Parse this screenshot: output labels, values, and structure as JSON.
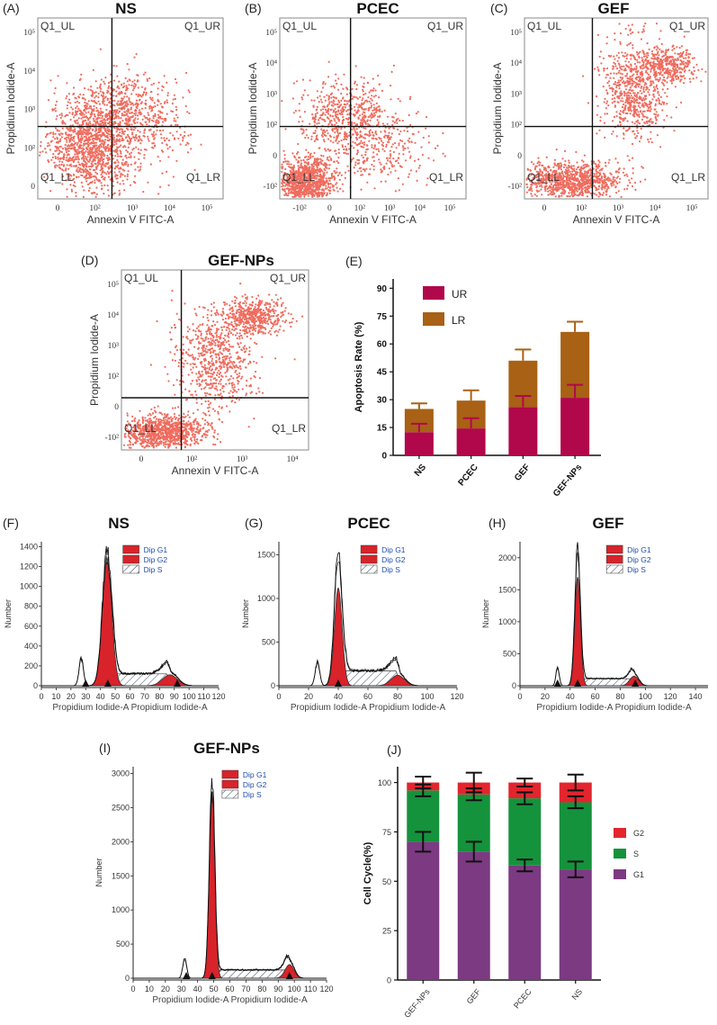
{
  "chart_data": [
    {
      "panel": "(A)",
      "type": "scatter",
      "title": "NS",
      "xlabel": "Annexin V FITC-A",
      "ylabel": "Propidium Iodide-A",
      "x_ticks": [
        "0",
        "10²",
        "10³",
        "10⁴",
        "10⁵"
      ],
      "y_ticks": [
        "0",
        "10²",
        "10³",
        "10⁴",
        "10⁵"
      ],
      "quadrants": [
        "Q1_UL",
        "Q1_UR",
        "Q1_LL",
        "Q1_LR"
      ],
      "gate": {
        "x": 0.4,
        "y": 0.4
      },
      "clusters": [
        {
          "cx": 0.3,
          "cy": 0.3,
          "sx": 0.12,
          "sy": 0.13,
          "n": 1300
        },
        {
          "cx": 0.48,
          "cy": 0.5,
          "sx": 0.13,
          "sy": 0.1,
          "n": 500
        },
        {
          "cx": 0.68,
          "cy": 0.36,
          "sx": 0.1,
          "sy": 0.09,
          "n": 100
        }
      ]
    },
    {
      "panel": "(B)",
      "type": "scatter",
      "title": "PCEC",
      "xlabel": "Annexin V FITC-A",
      "ylabel": "Propidium Iodide-A",
      "x_ticks": [
        "-10²",
        "0",
        "10²",
        "10³",
        "10⁴",
        "10⁵"
      ],
      "y_ticks": [
        "-10²",
        "0",
        "10²",
        "10³",
        "10⁴",
        "10⁵"
      ],
      "quadrants": [
        "Q1_UL",
        "Q1_UR",
        "Q1_LL",
        "Q1_LR"
      ],
      "gate": {
        "x": 0.38,
        "y": 0.4
      },
      "clusters": [
        {
          "cx": 0.14,
          "cy": 0.09,
          "sx": 0.08,
          "sy": 0.07,
          "n": 1100
        },
        {
          "cx": 0.35,
          "cy": 0.45,
          "sx": 0.13,
          "sy": 0.11,
          "n": 600
        },
        {
          "cx": 0.55,
          "cy": 0.28,
          "sx": 0.12,
          "sy": 0.12,
          "n": 250
        }
      ]
    },
    {
      "panel": "(C)",
      "type": "scatter",
      "title": "GEF",
      "xlabel": "Annexin V FITC-A",
      "ylabel": "Propidium Iodide-A",
      "x_ticks": [
        "0",
        "10²",
        "10³",
        "10⁴",
        "10⁵"
      ],
      "y_ticks": [
        "-10²",
        "0",
        "10²",
        "10³",
        "10⁴",
        "10⁵"
      ],
      "quadrants": [
        "Q1_UL",
        "Q1_UR",
        "Q1_LL",
        "Q1_LR"
      ],
      "gate": {
        "x": 0.37,
        "y": 0.4
      },
      "clusters": [
        {
          "cx": 0.25,
          "cy": 0.1,
          "sx": 0.14,
          "sy": 0.05,
          "n": 1000
        },
        {
          "cx": 0.6,
          "cy": 0.6,
          "sx": 0.09,
          "sy": 0.15,
          "n": 700
        },
        {
          "cx": 0.78,
          "cy": 0.74,
          "sx": 0.07,
          "sy": 0.05,
          "n": 350
        }
      ]
    },
    {
      "panel": "(D)",
      "type": "scatter",
      "title": "GEF-NPs",
      "xlabel": "Annexin V FITC-A",
      "ylabel": "Propidium Iodide-A",
      "x_ticks": [
        "0",
        "10²",
        "10³",
        "10⁴"
      ],
      "y_ticks": [
        "-10²",
        "0",
        "10²",
        "10³",
        "10⁴",
        "10⁵"
      ],
      "quadrants": [
        "Q1_UL",
        "Q1_UR",
        "Q1_LL",
        "Q1_LR"
      ],
      "gate": {
        "x": 0.32,
        "y": 0.29
      },
      "clusters": [
        {
          "cx": 0.22,
          "cy": 0.1,
          "sx": 0.12,
          "sy": 0.05,
          "n": 1000
        },
        {
          "cx": 0.5,
          "cy": 0.5,
          "sx": 0.11,
          "sy": 0.15,
          "n": 700
        },
        {
          "cx": 0.72,
          "cy": 0.74,
          "sx": 0.08,
          "sy": 0.05,
          "n": 500
        }
      ]
    },
    {
      "panel": "(E)",
      "type": "bar",
      "stacked": true,
      "ylabel": "Apoptosis Rate (%)",
      "categories": [
        "NS",
        "PCEC",
        "GEF",
        "GEF-NPs"
      ],
      "y_ticks": [
        0,
        15,
        30,
        45,
        60,
        75,
        90
      ],
      "ylim": [
        0,
        95
      ],
      "series": [
        {
          "name": "UR",
          "color": "#b0084a",
          "values": [
            12.5,
            14.5,
            26,
            31
          ],
          "errors": [
            4.5,
            5.5,
            6,
            7
          ]
        },
        {
          "name": "LR",
          "color": "#a86115",
          "values": [
            12.5,
            15,
            25,
            35.5
          ],
          "errors": [
            3,
            5.5,
            6,
            5.5
          ]
        }
      ]
    },
    {
      "panel": "(F)",
      "type": "area",
      "title": "NS",
      "xlabel": "Propidium Iodide-A Propidium Iodide-A",
      "ylabel": "Number",
      "xlim": [
        0,
        120
      ],
      "x_ticks": [
        0,
        10,
        20,
        30,
        40,
        50,
        60,
        70,
        80,
        90,
        100,
        110,
        120
      ],
      "ylim": [
        0,
        1450
      ],
      "y_ticks": [
        0,
        200,
        400,
        600,
        800,
        1000,
        1200,
        1400
      ],
      "legend": [
        "Dip G1",
        "Dip G2",
        "Dip S"
      ],
      "g1": {
        "mu": 44.5,
        "sd": 3.2,
        "h": 1250
      },
      "g2": {
        "mu": 87,
        "sd": 5,
        "h": 110
      },
      "s": {
        "a": 46,
        "b": 88,
        "h": 120
      },
      "debris": {
        "mu": 27,
        "sd": 1.5,
        "h": 280
      },
      "total_peak": 1350,
      "markers": [
        30,
        45,
        92
      ]
    },
    {
      "panel": "(G)",
      "type": "area",
      "title": "PCEC",
      "xlabel": "Propidium Iodide-A Propidium Iodide-A",
      "ylabel": "Number",
      "xlim": [
        0,
        120
      ],
      "x_ticks": [
        0,
        20,
        40,
        60,
        80,
        100,
        120
      ],
      "ylim": [
        0,
        1650
      ],
      "y_ticks": [
        0,
        500,
        1000,
        1500
      ],
      "legend": [
        "Dip G1",
        "Dip G2",
        "Dip S"
      ],
      "g1": {
        "mu": 40,
        "sd": 2.6,
        "h": 1120
      },
      "g2": {
        "mu": 80,
        "sd": 4.5,
        "h": 120
      },
      "s": {
        "a": 42,
        "b": 82,
        "h": 170
      },
      "debris": {
        "mu": 26,
        "sd": 1.5,
        "h": 280
      },
      "total_peak": 1540,
      "markers": [
        40
      ]
    },
    {
      "panel": "(H)",
      "type": "area",
      "title": "GEF",
      "xlabel": "Propidium Iodide-A Propidium Iodide-A",
      "ylabel": "Number",
      "xlim": [
        0,
        150
      ],
      "x_ticks": [
        0,
        20,
        40,
        60,
        80,
        100,
        120,
        140
      ],
      "ylim": [
        0,
        2250
      ],
      "y_ticks": [
        0,
        500,
        1000,
        1500,
        2000
      ],
      "legend": [
        "Dip G1",
        "Dip G2",
        "Dip S"
      ],
      "g1": {
        "mu": 46,
        "sd": 2.2,
        "h": 1700
      },
      "g2": {
        "mu": 91,
        "sd": 3.5,
        "h": 150
      },
      "s": {
        "a": 48,
        "b": 92,
        "h": 110
      },
      "debris": {
        "mu": 30,
        "sd": 1.3,
        "h": 300
      },
      "total_peak": 2150,
      "markers": [
        30,
        46,
        92
      ]
    },
    {
      "panel": "(I)",
      "type": "area",
      "title": "GEF-NPs",
      "xlabel": "Propidium Iodide-A Propidium Iodide-A",
      "ylabel": "Number",
      "xlim": [
        0,
        120
      ],
      "x_ticks": [
        0,
        10,
        20,
        30,
        40,
        50,
        60,
        70,
        80,
        90,
        100,
        110,
        120
      ],
      "ylim": [
        0,
        3100
      ],
      "y_ticks": [
        0,
        500,
        1000,
        1500,
        2000,
        2500,
        3000
      ],
      "legend": [
        "Dip G1",
        "Dip G2",
        "Dip S"
      ],
      "g1": {
        "mu": 49,
        "sd": 1.7,
        "h": 2750
      },
      "g2": {
        "mu": 97,
        "sd": 2.8,
        "h": 200
      },
      "s": {
        "a": 51,
        "b": 98,
        "h": 120
      },
      "debris": {
        "mu": 32,
        "sd": 1.2,
        "h": 300
      },
      "total_peak": 2950,
      "markers": [
        33,
        49,
        97
      ]
    },
    {
      "panel": "(J)",
      "type": "bar",
      "stacked": true,
      "ylabel": "Cell Cycle(%)",
      "categories": [
        "GEF-NPs",
        "GEF",
        "PCEC",
        "NS"
      ],
      "y_ticks": [
        0,
        25,
        50,
        75,
        100
      ],
      "ylim": [
        0,
        108
      ],
      "series": [
        {
          "name": "G1",
          "color": "#7c3a82",
          "values": [
            70,
            65,
            58,
            56
          ],
          "errors": [
            5,
            5,
            3,
            4
          ]
        },
        {
          "name": "S",
          "color": "#15923c",
          "values": [
            26,
            29,
            34,
            34
          ],
          "errors": [
            3,
            3,
            3,
            3
          ]
        },
        {
          "name": "G2",
          "color": "#e3252d",
          "values": [
            4,
            6,
            8,
            10
          ],
          "errors": [
            3,
            5,
            2,
            4
          ]
        }
      ]
    }
  ]
}
